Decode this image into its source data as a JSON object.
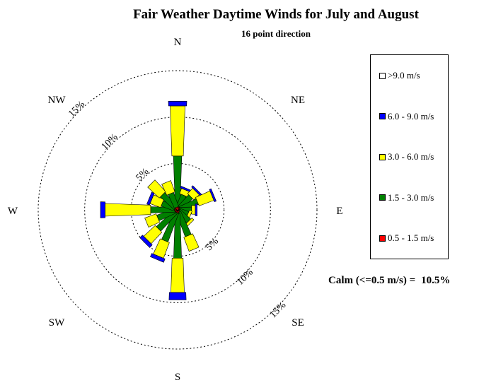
{
  "title": "Fair Weather Daytime Winds for July and August",
  "subtitle": "16 point direction",
  "calm": {
    "label": "Calm (<=0.5 m/s) =",
    "value": "10.5%"
  },
  "compass_labels": {
    "N": "N",
    "NE": "NE",
    "E": "E",
    "SE": "SE",
    "S": "S",
    "SW": "SW",
    "W": "W",
    "NW": "NW"
  },
  "chart_data": {
    "type": "wind-rose",
    "directions": [
      "N",
      "NNE",
      "NE",
      "ENE",
      "E",
      "ESE",
      "SE",
      "SSE",
      "S",
      "SSW",
      "SW",
      "WSW",
      "W",
      "WNW",
      "NW",
      "NNW"
    ],
    "rings": [
      {
        "value": 5,
        "label": "5%"
      },
      {
        "value": 10,
        "label": "10%"
      },
      {
        "value": 15,
        "label": "15%"
      }
    ],
    "max_percent": 15,
    "bins": [
      {
        "name": "0.5 - 1.5 m/s",
        "color": "#ff0000"
      },
      {
        "name": "1.5 - 3.0 m/s",
        "color": "#008000"
      },
      {
        "name": "3.0 - 6.0 m/s",
        "color": "#ffff00"
      },
      {
        "name": "6.0 - 9.0 m/s",
        "color": "#0000ff"
      },
      {
        "name": ">9.0 m/s",
        "color": "#ffffff"
      }
    ],
    "legend_order": [
      ">9.0 m/s",
      "6.0 - 9.0 m/s",
      "3.0 - 6.0 m/s",
      "1.5 - 3.0 m/s",
      "0.5 - 1.5 m/s"
    ],
    "values": [
      [
        0.4,
        5.4,
        5.4,
        0.5,
        0.0
      ],
      [
        0.3,
        1.4,
        0.6,
        0.2,
        0.0
      ],
      [
        0.3,
        1.7,
        0.8,
        0.2,
        0.0
      ],
      [
        0.3,
        2.0,
        1.7,
        0.2,
        0.0
      ],
      [
        0.2,
        1.3,
        0.4,
        0.2,
        0.0
      ],
      [
        0.2,
        1.0,
        0.3,
        0.0,
        0.0
      ],
      [
        0.2,
        1.5,
        0.3,
        0.0,
        0.0
      ],
      [
        0.3,
        2.7,
        1.6,
        0.0,
        0.0
      ],
      [
        0.4,
        4.8,
        3.7,
        0.8,
        0.0
      ],
      [
        0.3,
        3.3,
        1.8,
        0.4,
        0.0
      ],
      [
        0.3,
        2.6,
        1.7,
        0.4,
        0.0
      ],
      [
        0.3,
        2.0,
        1.3,
        0.0,
        0.0
      ],
      [
        0.3,
        2.6,
        4.9,
        0.5,
        0.0
      ],
      [
        0.3,
        1.5,
        1.2,
        0.3,
        0.0
      ],
      [
        0.3,
        2.0,
        1.7,
        0.0,
        0.0
      ],
      [
        0.3,
        1.6,
        1.3,
        0.0,
        0.0
      ]
    ]
  }
}
